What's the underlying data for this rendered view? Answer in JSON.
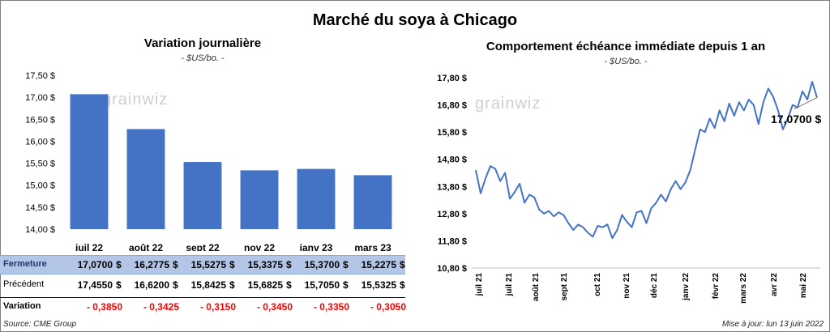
{
  "title": "Marché du soya à Chicago",
  "logo_text": "grainwiz",
  "left_chart": {
    "title": "Variation journalière",
    "unit": "- $US/bo. -"
  },
  "right_chart": {
    "title": "Comportement échéance immédiate depuis 1 an",
    "unit": "- $US/bo. -",
    "last_value_label": "17,0700 $"
  },
  "table": {
    "currency": "$",
    "rows": [
      {
        "label": "Fermeture",
        "values": [
          "17,0700",
          "16,2775",
          "15,5275",
          "15,3375",
          "15,3700",
          "15,2275"
        ]
      },
      {
        "label": "Précédent",
        "values": [
          "17,4550",
          "16,6200",
          "15,8425",
          "15,6825",
          "15,7050",
          "15,5325"
        ]
      },
      {
        "label": "Variation",
        "values": [
          "- 0,3850",
          "- 0,3425",
          "- 0,3150",
          "- 0,3450",
          "- 0,3350",
          "- 0,3050"
        ]
      }
    ]
  },
  "footer": {
    "source": "Source: CME Group",
    "updated": "Mise à jour: lun 13 juin 2022"
  },
  "colors": {
    "bar": "#4472c4",
    "line": "#4472c4",
    "fermeture_bg": "#b4c6e7",
    "negative": "#ff0000",
    "grid": "#d9d9d9"
  },
  "chart_data": [
    {
      "type": "bar",
      "categories": [
        "juil 22",
        "août 22",
        "sept 22",
        "nov 22",
        "janv 23",
        "mars 23"
      ],
      "values": [
        17.07,
        16.2775,
        15.5275,
        15.3375,
        15.37,
        15.2275
      ],
      "title": "Variation journalière",
      "ylabel": "",
      "ylim": [
        14.0,
        17.5
      ],
      "yticks": [
        14.0,
        14.5,
        15.0,
        15.5,
        16.0,
        16.5,
        17.0,
        17.5
      ],
      "ytick_labels": [
        "14,00 $",
        "14,50 $",
        "15,00 $",
        "15,50 $",
        "16,00 $",
        "16,50 $",
        "17,00 $",
        "17,50 $"
      ],
      "grid": false
    },
    {
      "type": "line",
      "title": "Comportement échéance immédiate depuis 1 an",
      "ylim": [
        10.8,
        17.8
      ],
      "yticks": [
        10.8,
        11.8,
        12.8,
        13.8,
        14.8,
        15.8,
        16.8,
        17.8
      ],
      "ytick_labels": [
        "10,80 $",
        "11,80 $",
        "12,80 $",
        "13,80 $",
        "14,80 $",
        "15,80 $",
        "16,80 $",
        "17,80 $"
      ],
      "xticks": [
        "juil 21",
        "juil 21",
        "août 21",
        "sept 21",
        "oct 21",
        "nov 21",
        "déc 21",
        "janv 22",
        "févr 22",
        "mars 22",
        "avr 22",
        "mai 22"
      ],
      "series": [
        {
          "values": [
            14.4,
            13.55,
            14.1,
            14.55,
            14.45,
            14.0,
            14.3,
            13.35,
            13.6,
            13.9,
            13.2,
            13.5,
            13.4,
            12.95,
            12.8,
            12.9,
            12.7,
            12.85,
            12.75,
            12.45,
            12.2,
            12.4,
            12.3,
            12.1,
            11.95,
            12.35,
            12.3,
            12.4,
            11.9,
            12.2,
            12.75,
            12.5,
            12.3,
            12.85,
            12.9,
            12.45,
            13.0,
            13.2,
            13.5,
            13.25,
            13.7,
            14.0,
            13.7,
            13.95,
            14.4,
            15.15,
            15.9,
            15.8,
            16.3,
            15.95,
            16.6,
            16.2,
            16.85,
            16.4,
            16.9,
            16.6,
            17.0,
            16.8,
            16.1,
            16.9,
            17.4,
            17.1,
            16.6,
            15.9,
            16.3,
            16.8,
            16.7,
            17.3,
            17.0,
            17.65,
            17.07
          ]
        }
      ],
      "last_value": 17.07,
      "grid": false
    }
  ]
}
